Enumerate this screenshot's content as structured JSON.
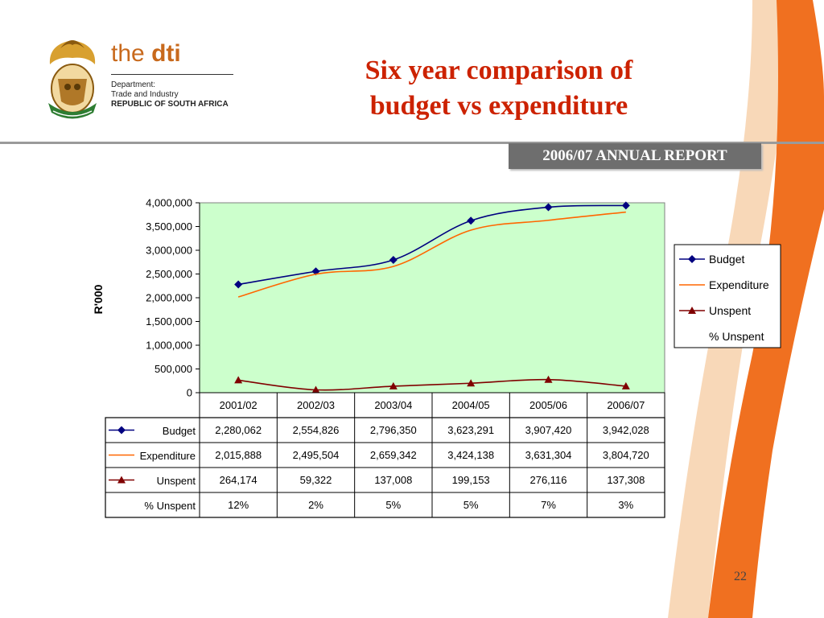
{
  "header": {
    "logo_prefix": "the",
    "logo_main": "dti",
    "dept_line1": "Department:",
    "dept_line2": "Trade and Industry",
    "dept_line3": "REPUBLIC OF SOUTH AFRICA",
    "title_line1": "Six year comparison of",
    "title_line2": "budget vs expenditure",
    "banner": "2006/07 ANNUAL REPORT"
  },
  "page_number": "22",
  "colors": {
    "title": "#cc2200",
    "plot_bg": "#ccffcc",
    "budget": "#000080",
    "expenditure": "#ff6600",
    "unspent": "#800000",
    "stripe": "#f07020"
  },
  "chart_data": {
    "type": "line",
    "title": "",
    "xlabel": "",
    "ylabel": "R'000",
    "ylim": [
      0,
      4000000
    ],
    "yticks": [
      "0",
      "500,000",
      "1,000,000",
      "1,500,000",
      "2,000,000",
      "2,500,000",
      "3,000,000",
      "3,500,000",
      "4,000,000"
    ],
    "ytick_values": [
      0,
      500000,
      1000000,
      1500000,
      2000000,
      2500000,
      3000000,
      3500000,
      4000000
    ],
    "categories": [
      "2001/02",
      "2002/03",
      "2003/04",
      "2004/05",
      "2005/06",
      "2006/07"
    ],
    "legend_position": "right",
    "series": [
      {
        "name": "Budget",
        "values": [
          2280062,
          2554826,
          2796350,
          3623291,
          3907420,
          3942028
        ],
        "display": [
          "2,280,062",
          "2,554,826",
          "2,796,350",
          "3,623,291",
          "3,907,420",
          "3,942,028"
        ],
        "marker": "diamond"
      },
      {
        "name": "Expenditure",
        "values": [
          2015888,
          2495504,
          2659342,
          3424138,
          3631304,
          3804720
        ],
        "display": [
          "2,015,888",
          "2,495,504",
          "2,659,342",
          "3,424,138",
          "3,631,304",
          "3,804,720"
        ],
        "marker": "none"
      },
      {
        "name": "Unspent",
        "values": [
          264174,
          59322,
          137008,
          199153,
          276116,
          137308
        ],
        "display": [
          "264,174",
          "59,322",
          "137,008",
          "199,153",
          "276,116",
          "137,308"
        ],
        "marker": "triangle"
      },
      {
        "name": "% Unspent",
        "values": [
          12,
          2,
          5,
          5,
          7,
          3
        ],
        "display": [
          "12%",
          "2%",
          "5%",
          "5%",
          "7%",
          "3%"
        ],
        "marker": "none"
      }
    ]
  }
}
